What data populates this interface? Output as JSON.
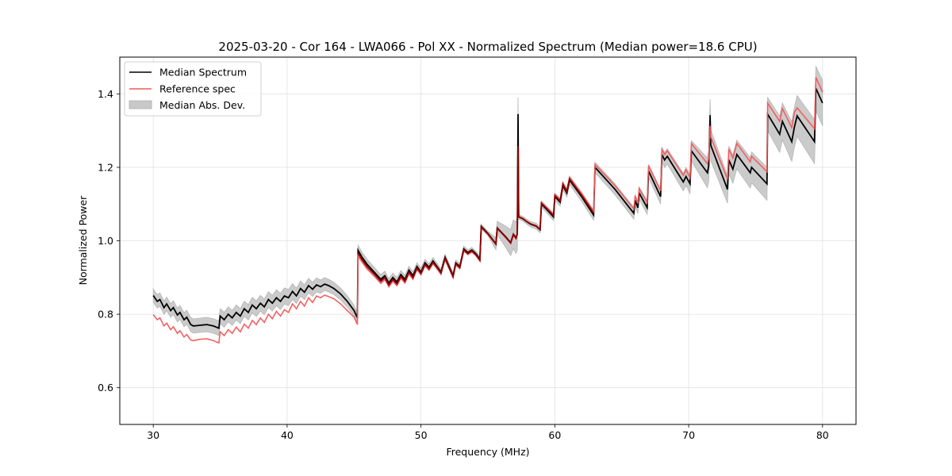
{
  "chart_data": {
    "type": "line",
    "title": "2025-03-20 - Cor 164 - LWA066 - Pol XX - Normalized Spectrum (Median power=18.6 CPU)",
    "xlabel": "Frequency (MHz)",
    "ylabel": "Normalized Power",
    "xlim": [
      27.5,
      82.5
    ],
    "ylim": [
      0.5,
      1.5
    ],
    "xticks": [
      30,
      40,
      50,
      60,
      70,
      80
    ],
    "xtick_labels": [
      "30",
      "40",
      "50",
      "60",
      "70",
      "80"
    ],
    "yticks": [
      0.6,
      0.8,
      1.0,
      1.2,
      1.4
    ],
    "ytick_labels": [
      "0.6",
      "0.8",
      "1.0",
      "1.2",
      "1.4"
    ],
    "grid": true,
    "legend_position": "top-left",
    "legend": [
      {
        "label": "Median Spectrum",
        "kind": "line",
        "color": "#000000"
      },
      {
        "label": "Reference spec",
        "kind": "line",
        "color": "#f25a5a"
      },
      {
        "label": "Median Abs. Dev.",
        "kind": "band",
        "color": "#c8c8c8"
      }
    ],
    "series": [
      {
        "name": "Median Spectrum",
        "color": "#000000",
        "x": [
          30.0,
          30.3,
          30.5,
          30.8,
          31.0,
          31.3,
          31.5,
          31.8,
          32.0,
          32.3,
          32.5,
          32.8,
          33.0,
          33.5,
          34.0,
          34.5,
          34.9,
          35.0,
          35.3,
          35.6,
          35.9,
          36.2,
          36.5,
          36.8,
          37.1,
          37.4,
          37.7,
          38.0,
          38.3,
          38.6,
          38.9,
          39.2,
          39.5,
          39.8,
          40.1,
          40.4,
          40.7,
          41.0,
          41.3,
          41.6,
          41.9,
          42.2,
          42.5,
          42.8,
          43.1,
          43.5,
          44.0,
          44.5,
          45.0,
          45.25,
          45.3,
          45.6,
          46.0,
          46.5,
          47.0,
          47.3,
          47.6,
          47.9,
          48.2,
          48.5,
          48.8,
          49.1,
          49.4,
          49.7,
          50.0,
          50.3,
          50.6,
          50.9,
          51.2,
          51.5,
          51.8,
          52.1,
          52.4,
          52.6,
          52.9,
          53.2,
          53.5,
          53.8,
          54.1,
          54.4,
          54.5,
          55.0,
          55.6,
          55.7,
          56.3,
          56.7,
          56.9,
          57.1,
          57.2,
          57.25,
          57.3,
          57.6,
          57.9,
          58.2,
          58.6,
          58.9,
          59.0,
          59.4,
          59.9,
          60.0,
          60.4,
          60.6,
          60.9,
          61.1,
          61.2,
          62.0,
          62.9,
          63.0,
          64.5,
          65.9,
          66.0,
          66.2,
          66.3,
          66.9,
          67.0,
          67.9,
          68.0,
          68.2,
          68.4,
          69.6,
          69.8,
          70.1,
          70.2,
          71.4,
          71.5,
          71.6,
          71.65,
          72.9,
          73.0,
          73.3,
          73.6,
          74.6,
          74.7,
          75.85,
          75.9,
          76.8,
          77.0,
          77.7,
          77.9,
          78.1,
          79.4,
          79.5,
          80.0
        ],
        "y": [
          0.851,
          0.835,
          0.84,
          0.818,
          0.828,
          0.81,
          0.818,
          0.798,
          0.805,
          0.785,
          0.792,
          0.772,
          0.768,
          0.77,
          0.772,
          0.768,
          0.762,
          0.795,
          0.785,
          0.8,
          0.79,
          0.805,
          0.795,
          0.815,
          0.805,
          0.825,
          0.815,
          0.83,
          0.82,
          0.84,
          0.83,
          0.845,
          0.835,
          0.85,
          0.845,
          0.862,
          0.85,
          0.87,
          0.86,
          0.878,
          0.868,
          0.88,
          0.875,
          0.882,
          0.878,
          0.87,
          0.855,
          0.835,
          0.81,
          0.79,
          0.974,
          0.955,
          0.935,
          0.915,
          0.895,
          0.905,
          0.885,
          0.9,
          0.888,
          0.908,
          0.895,
          0.92,
          0.905,
          0.93,
          0.915,
          0.94,
          0.928,
          0.945,
          0.93,
          0.915,
          0.955,
          0.93,
          0.905,
          0.94,
          0.93,
          0.978,
          0.968,
          0.975,
          0.965,
          0.95,
          1.039,
          1.02,
          0.992,
          1.035,
          1.012,
          0.995,
          1.018,
          1.008,
          1.02,
          1.345,
          1.065,
          1.06,
          1.052,
          1.045,
          1.04,
          1.03,
          1.1,
          1.085,
          1.065,
          1.12,
          1.105,
          1.15,
          1.13,
          1.165,
          1.16,
          1.12,
          1.07,
          1.2,
          1.14,
          1.075,
          1.11,
          1.09,
          1.13,
          1.09,
          1.19,
          1.12,
          1.235,
          1.22,
          1.23,
          1.16,
          1.175,
          1.155,
          1.245,
          1.185,
          1.205,
          1.342,
          1.26,
          1.14,
          1.22,
          1.195,
          1.235,
          1.185,
          1.2,
          1.155,
          1.345,
          1.29,
          1.325,
          1.27,
          1.31,
          1.34,
          1.27,
          1.415,
          1.375
        ]
      },
      {
        "name": "Reference spec",
        "color": "#f25a5a",
        "x": [
          30.0,
          30.3,
          30.5,
          30.8,
          31.0,
          31.3,
          31.5,
          31.8,
          32.0,
          32.3,
          32.5,
          32.8,
          33.0,
          33.5,
          34.0,
          34.5,
          34.9,
          35.0,
          35.3,
          35.6,
          35.9,
          36.2,
          36.5,
          36.8,
          37.1,
          37.4,
          37.7,
          38.0,
          38.3,
          38.6,
          38.9,
          39.2,
          39.5,
          39.8,
          40.1,
          40.4,
          40.7,
          41.0,
          41.3,
          41.6,
          41.9,
          42.2,
          42.5,
          42.8,
          43.1,
          43.5,
          44.0,
          44.5,
          45.0,
          45.25,
          45.3,
          45.6,
          46.0,
          46.5,
          47.0,
          47.3,
          47.6,
          47.9,
          48.2,
          48.5,
          48.8,
          49.1,
          49.4,
          49.7,
          50.0,
          50.3,
          50.6,
          50.9,
          51.2,
          51.5,
          51.8,
          52.1,
          52.4,
          52.6,
          52.9,
          53.2,
          53.5,
          53.8,
          54.1,
          54.4,
          54.5,
          55.0,
          55.6,
          55.7,
          56.3,
          56.7,
          56.9,
          57.1,
          57.2,
          57.25,
          57.3,
          57.6,
          57.9,
          58.2,
          58.6,
          58.9,
          59.0,
          59.4,
          59.9,
          60.0,
          60.4,
          60.6,
          60.9,
          61.1,
          61.2,
          62.0,
          62.9,
          63.0,
          64.5,
          65.9,
          66.0,
          66.2,
          66.3,
          66.9,
          67.0,
          67.9,
          68.0,
          68.2,
          68.4,
          69.6,
          69.8,
          70.1,
          70.2,
          71.4,
          71.5,
          71.6,
          71.65,
          72.9,
          73.0,
          73.3,
          73.6,
          74.6,
          74.7,
          75.85,
          75.9,
          76.8,
          77.0,
          77.7,
          77.9,
          78.1,
          79.4,
          79.5,
          80.0
        ],
        "y": [
          0.799,
          0.785,
          0.79,
          0.768,
          0.776,
          0.758,
          0.766,
          0.748,
          0.755,
          0.738,
          0.745,
          0.73,
          0.728,
          0.732,
          0.733,
          0.728,
          0.722,
          0.752,
          0.742,
          0.758,
          0.748,
          0.765,
          0.752,
          0.773,
          0.762,
          0.783,
          0.772,
          0.79,
          0.778,
          0.8,
          0.788,
          0.808,
          0.795,
          0.812,
          0.805,
          0.828,
          0.815,
          0.835,
          0.822,
          0.845,
          0.832,
          0.85,
          0.845,
          0.852,
          0.848,
          0.842,
          0.828,
          0.81,
          0.792,
          0.772,
          0.959,
          0.942,
          0.922,
          0.905,
          0.885,
          0.895,
          0.875,
          0.89,
          0.878,
          0.898,
          0.885,
          0.91,
          0.895,
          0.922,
          0.908,
          0.932,
          0.92,
          0.938,
          0.925,
          0.91,
          0.95,
          0.925,
          0.9,
          0.935,
          0.925,
          0.973,
          0.963,
          0.97,
          0.96,
          0.945,
          1.036,
          1.018,
          0.99,
          1.033,
          1.01,
          0.993,
          1.016,
          1.006,
          1.018,
          1.17,
          1.066,
          1.061,
          1.053,
          1.046,
          1.041,
          1.032,
          1.104,
          1.09,
          1.072,
          1.126,
          1.112,
          1.157,
          1.138,
          1.172,
          1.167,
          1.128,
          1.08,
          1.208,
          1.15,
          1.087,
          1.122,
          1.102,
          1.142,
          1.104,
          1.204,
          1.136,
          1.248,
          1.235,
          1.245,
          1.178,
          1.193,
          1.172,
          1.265,
          1.21,
          1.225,
          1.313,
          1.283,
          1.168,
          1.25,
          1.225,
          1.265,
          1.215,
          1.23,
          1.188,
          1.375,
          1.325,
          1.36,
          1.308,
          1.35,
          1.362,
          1.305,
          1.445,
          1.405
        ]
      },
      {
        "name": "Median Abs. Dev.",
        "kind": "band",
        "color": "#c8c8c8",
        "x": [
          30.0,
          35.0,
          40.0,
          45.25,
          45.3,
          50.0,
          55.0,
          57.25,
          57.3,
          60.0,
          63.0,
          66.0,
          68.0,
          70.0,
          71.6,
          72.0,
          75.9,
          78.0,
          80.0
        ],
        "half_width": [
          0.018,
          0.02,
          0.022,
          0.014,
          0.014,
          0.01,
          0.006,
          0.045,
          0.006,
          0.01,
          0.014,
          0.016,
          0.02,
          0.025,
          0.043,
          0.035,
          0.045,
          0.055,
          0.062
        ]
      }
    ]
  }
}
